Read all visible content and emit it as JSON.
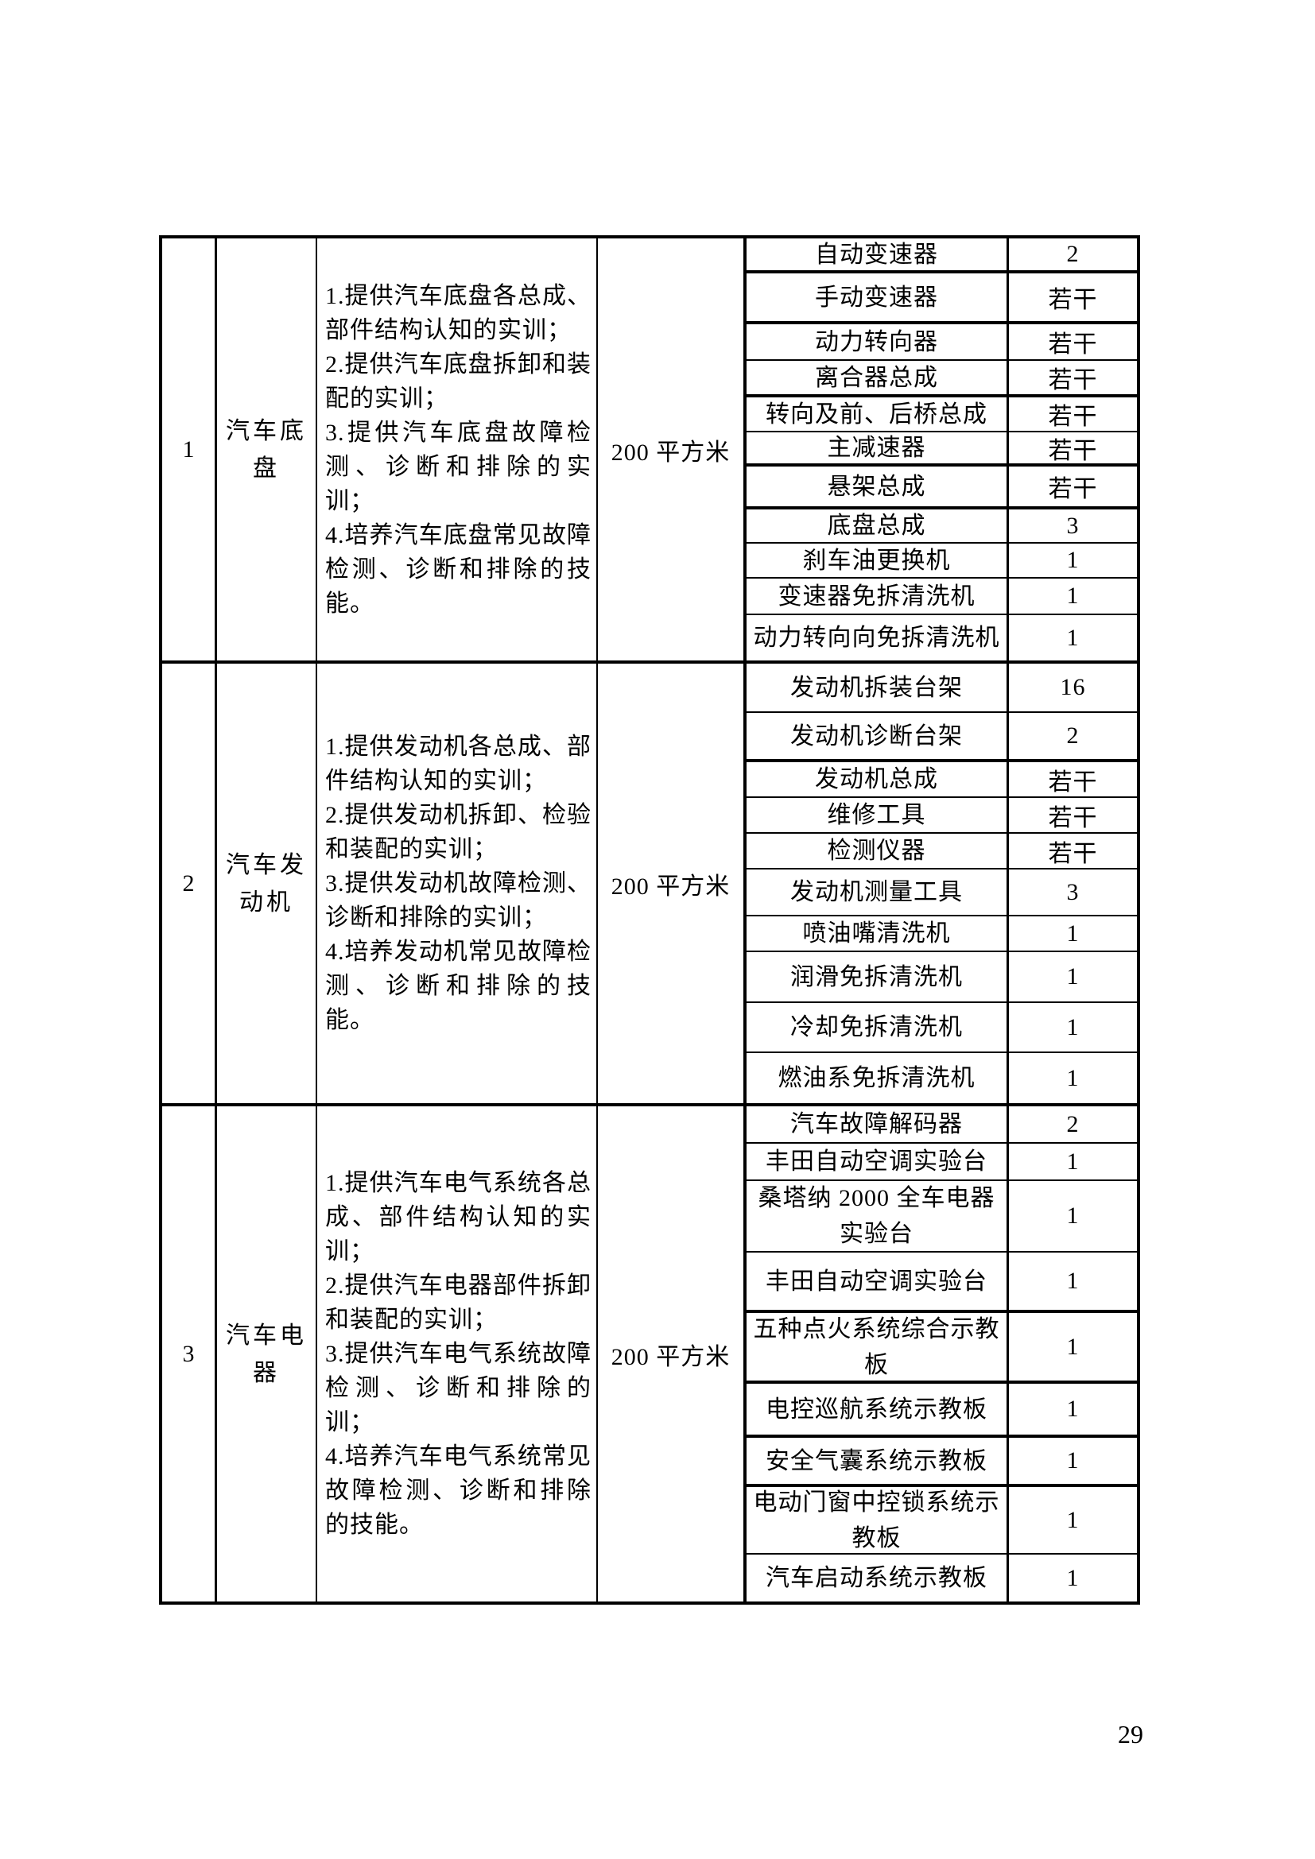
{
  "page": {
    "number": "29"
  },
  "table": {
    "rows": [
      {
        "index": "1",
        "name": "汽车底盘",
        "description": [
          "1.提供汽车底盘各总成、部件结构认知的实训；",
          "2.提供汽车底盘拆卸和装配的实训；",
          "3.提供汽车底盘故障检测、诊断和排除的实训；",
          "4.培养汽车底盘常见故障检测、诊断和排除的技能。"
        ],
        "area": "200 平方米",
        "equipment": [
          {
            "name": "自动变速器",
            "qty": "2"
          },
          {
            "name": "手动变速器",
            "qty": "若干"
          },
          {
            "name": "动力转向器",
            "qty": "若干"
          },
          {
            "name": "离合器总成",
            "qty": "若干"
          },
          {
            "name": "转向及前、后桥总成",
            "qty": "若干"
          },
          {
            "name": "主减速器",
            "qty": "若干"
          },
          {
            "name": "悬架总成",
            "qty": "若干"
          },
          {
            "name": "底盘总成",
            "qty": "3"
          },
          {
            "name": "刹车油更换机",
            "qty": "1"
          },
          {
            "name": "变速器免拆清洗机",
            "qty": "1"
          },
          {
            "name": "动力转向向免拆清洗机",
            "qty": "1"
          }
        ]
      },
      {
        "index": "2",
        "name": "汽车发动机",
        "description": [
          "1.提供发动机各总成、部件结构认知的实训；",
          "2.提供发动机拆卸、检验和装配的实训；",
          "3.提供发动机故障检测、诊断和排除的实训；",
          "4.培养发动机常见故障检测、诊断和排除的技能。"
        ],
        "area": "200 平方米",
        "equipment": [
          {
            "name": "发动机拆装台架",
            "qty": "16"
          },
          {
            "name": "发动机诊断台架",
            "qty": "2"
          },
          {
            "name": "发动机总成",
            "qty": "若干"
          },
          {
            "name": "维修工具",
            "qty": "若干"
          },
          {
            "name": "检测仪器",
            "qty": "若干"
          },
          {
            "name": "发动机测量工具",
            "qty": "3"
          },
          {
            "name": "喷油嘴清洗机",
            "qty": "1"
          },
          {
            "name": "润滑免拆清洗机",
            "qty": "1"
          },
          {
            "name": "冷却免拆清洗机",
            "qty": "1"
          },
          {
            "name": "燃油系免拆清洗机",
            "qty": "1"
          }
        ]
      },
      {
        "index": "3",
        "name": "汽车电器",
        "description": [
          "1.提供汽车电气系统各总成、部件结构认知的实训；",
          "2.提供汽车电器部件拆卸和装配的实训；",
          "3.提供汽车电气系统故障检测、诊断和排除的训；",
          "4.培养汽车电气系统常见故障检测、诊断和排除的技能。"
        ],
        "area": "200 平方米",
        "equipment": [
          {
            "name": "汽车故障解码器",
            "qty": "2"
          },
          {
            "name": "丰田自动空调实验台",
            "qty": "1"
          },
          {
            "name": "桑塔纳 2000 全车电器实验台",
            "qty": "1"
          },
          {
            "name": "丰田自动空调实验台",
            "qty": "1"
          },
          {
            "name": "五种点火系统综合示教板",
            "qty": "1"
          },
          {
            "name": "电控巡航系统示教板",
            "qty": "1"
          },
          {
            "name": "安全气囊系统示教板",
            "qty": "1"
          },
          {
            "name": "电动门窗中控锁系统示教板",
            "qty": "1"
          },
          {
            "name": "汽车启动系统示教板",
            "qty": "1"
          }
        ]
      }
    ]
  }
}
